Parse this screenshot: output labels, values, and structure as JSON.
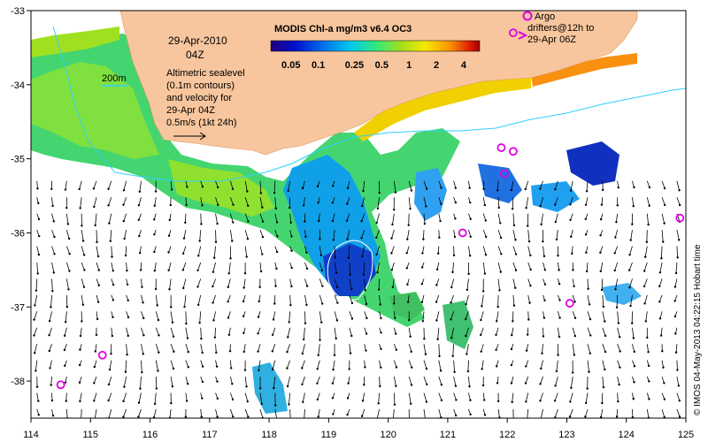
{
  "map": {
    "title_date": "29-Apr-2010",
    "title_time": "04Z",
    "isobath_label": "200m",
    "description_lines": [
      "Altimetric sealevel",
      "(0.1m contours)",
      "and velocity for",
      "29-Apr 04Z"
    ],
    "velocity_scale_label": "0.5m/s (1kt 24h)",
    "argo_legend_lines": [
      "Argo",
      "drifters@12h to",
      "29-Apr 06Z"
    ],
    "credit": "© IMOS 04-May-2013 04:22:15 Hobart time",
    "colorbar": {
      "title": "MODIS Chl-a mg/m3 v6.4 OC3",
      "ticks": [
        "0.05",
        "0.1",
        "0.25",
        "0.5",
        "1",
        "2",
        "4"
      ]
    },
    "x_axis": {
      "ticks": [
        "114",
        "115",
        "116",
        "117",
        "118",
        "119",
        "120",
        "121",
        "122",
        "123",
        "124",
        "125"
      ]
    },
    "y_axis": {
      "ticks": [
        "-33",
        "-34",
        "-35",
        "-36",
        "-37",
        "-38"
      ]
    },
    "colors": {
      "land": "#f8c69e",
      "ocean": "#ffffff",
      "isobath": "#30d0ff",
      "sealevel_contour": "#ffffff",
      "argo_marker": "#e000e0",
      "vector": "#000000"
    }
  },
  "chart_data": {
    "type": "map",
    "xlim": [
      114,
      125
    ],
    "ylim": [
      -38.5,
      -33
    ],
    "argo_positions": [
      {
        "lon": 114.5,
        "lat": -38.05
      },
      {
        "lon": 115.2,
        "lat": -37.65
      },
      {
        "lon": 121.25,
        "lat": -36.0
      },
      {
        "lon": 121.9,
        "lat": -34.85
      },
      {
        "lon": 122.1,
        "lat": -34.9
      },
      {
        "lon": 121.95,
        "lat": -35.2
      },
      {
        "lon": 123.05,
        "lat": -36.95
      },
      {
        "lon": 124.9,
        "lat": -35.8
      },
      {
        "lon": 122.1,
        "lat": -33.3
      }
    ]
  }
}
